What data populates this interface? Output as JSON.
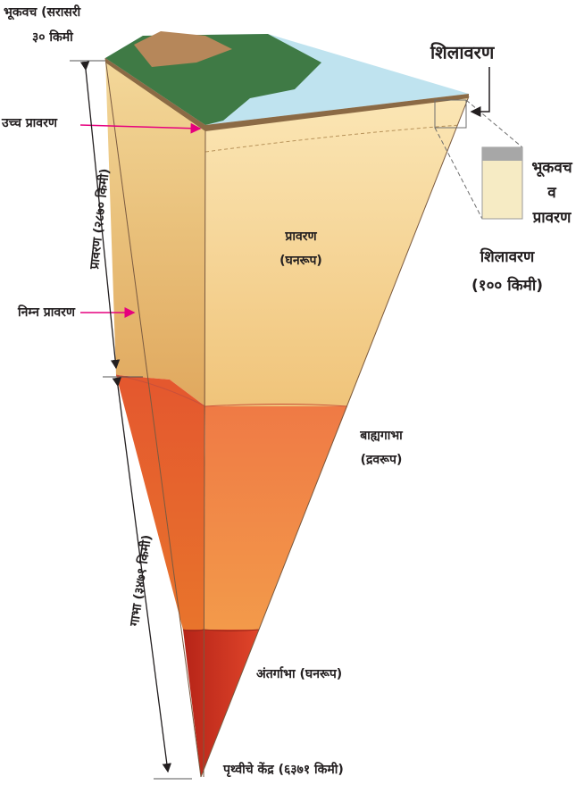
{
  "labels": {
    "crust": [
      "भूकवच (सरासरी",
      "३० किमी"
    ],
    "lithosphere_title": "शिलावरण",
    "upper_mantle": "उच्च प्रावरण",
    "mantle_depth": "प्रावरण (२८७० किमी)",
    "lower_mantle": "निम्न प्रावरण",
    "mantle": [
      "प्रावरण",
      "(घनरूप)"
    ],
    "inset": [
      "भूकवच",
      "व",
      "प्रावरण"
    ],
    "lithosphere": [
      "शिलावरण",
      "(१०० किमी)"
    ],
    "outer_core": [
      "बाह्यगाभा",
      "(द्रवरूप)"
    ],
    "core_depth": "गाभा (३४७१ किमी)",
    "inner_core": "अंतर्गाभा (घनरूप)",
    "center": "पृथ्वीचे केंद्र (६३७१ किमी)"
  }
}
